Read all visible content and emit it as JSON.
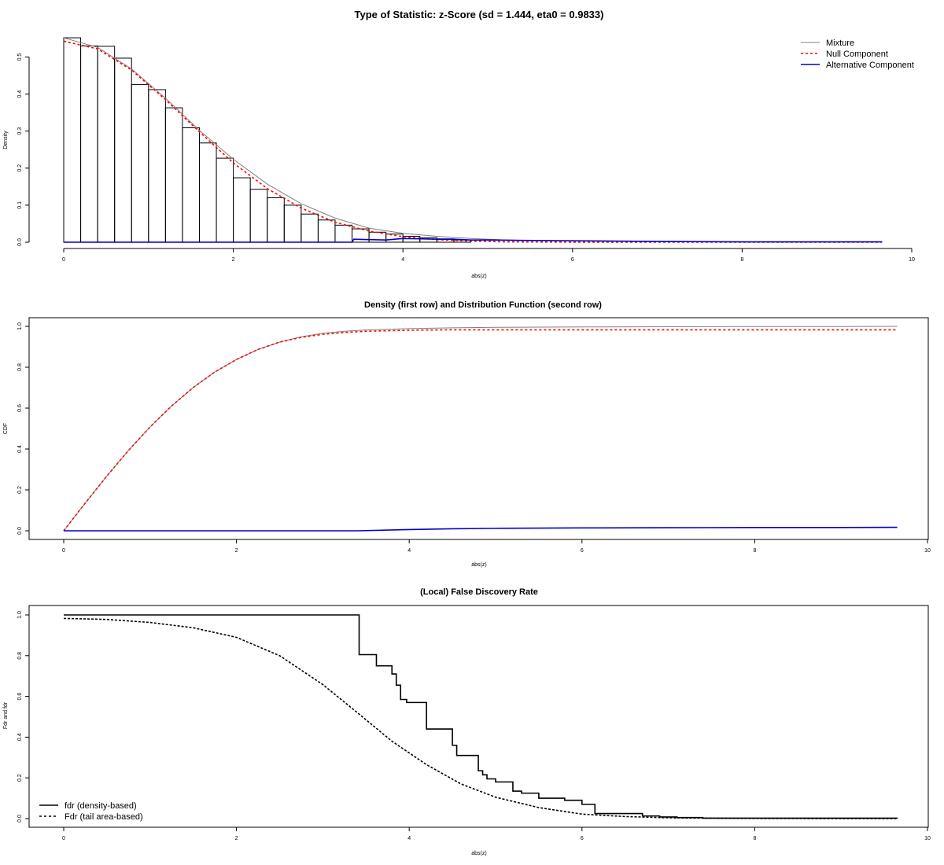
{
  "chart_data": [
    {
      "type": "bar",
      "title": "Type of Statistic: z-Score  (sd = 1.444, eta0 = 0.9833)",
      "xlabel": "abs(z)",
      "ylabel": "Density",
      "xlim": [
        0,
        10
      ],
      "ylim": [
        0,
        0.55
      ],
      "xticks": [
        "0",
        "2",
        "4",
        "6",
        "8",
        "10"
      ],
      "yticks": [
        "0.0",
        "0.1",
        "0.2",
        "0.3",
        "0.4",
        "0.5"
      ],
      "histogram": {
        "bin_width": 0.2,
        "start": 0,
        "values": [
          0.552,
          0.53,
          0.529,
          0.497,
          0.426,
          0.412,
          0.363,
          0.309,
          0.268,
          0.227,
          0.174,
          0.143,
          0.12,
          0.1,
          0.076,
          0.06,
          0.046,
          0.036,
          0.027,
          0.022,
          0.016,
          0.012,
          0.009,
          0.006
        ]
      },
      "series": [
        {
          "name": "Mixture",
          "color": "#808080",
          "style": "solid",
          "x": [
            0,
            0.4,
            0.8,
            1.2,
            1.6,
            2.0,
            2.4,
            2.8,
            3.2,
            3.6,
            4.0,
            4.4,
            4.8,
            5.2,
            5.6,
            6.0,
            7.0,
            8.0,
            9.0,
            9.65
          ],
          "y": [
            0.552,
            0.526,
            0.468,
            0.389,
            0.302,
            0.224,
            0.157,
            0.104,
            0.065,
            0.038,
            0.024,
            0.016,
            0.01,
            0.006,
            0.004,
            0.003,
            0.002,
            0.001,
            0.001,
            0.001
          ]
        },
        {
          "name": "Null Component",
          "color": "#ff0000",
          "style": "dashed",
          "x": [
            0,
            0.4,
            0.8,
            1.2,
            1.6,
            2.0,
            2.4,
            2.8,
            3.2,
            3.6,
            4.0,
            4.4,
            4.8,
            5.2,
            5.6,
            6.0,
            7.0,
            8.0,
            9.0,
            9.65
          ],
          "y": [
            0.543,
            0.522,
            0.465,
            0.385,
            0.298,
            0.214,
            0.145,
            0.092,
            0.054,
            0.03,
            0.015,
            0.007,
            0.003,
            0.001,
            0.0005,
            0.0002,
            0,
            0,
            0,
            0
          ]
        },
        {
          "name": "Alternative Component",
          "color": "#0000cd",
          "style": "solid",
          "x": [
            0,
            3.4,
            3.42,
            3.6,
            3.8,
            4.0,
            4.2,
            4.4,
            4.6,
            4.8,
            5.0,
            5.4,
            6.0,
            7.0,
            8.0,
            9.0,
            9.65
          ],
          "y": [
            0,
            0,
            0.008,
            0.007,
            0.006,
            0.01,
            0.009,
            0.008,
            0.008,
            0.006,
            0.006,
            0.005,
            0.004,
            0.002,
            0.001,
            0.001,
            0.001
          ]
        }
      ],
      "legend": {
        "position": "top-right",
        "entries": [
          "Mixture",
          "Null Component",
          "Alternative Component"
        ]
      }
    },
    {
      "type": "line",
      "title": "Density (first row) and Distribution Function (second row)",
      "xlabel": "abs(z)",
      "ylabel": "CDF",
      "xlim": [
        0,
        10
      ],
      "ylim": [
        0,
        1
      ],
      "xticks": [
        "0",
        "2",
        "4",
        "6",
        "8",
        "10"
      ],
      "yticks": [
        "0.0",
        "0.2",
        "0.4",
        "0.6",
        "0.8",
        "1.0"
      ],
      "series": [
        {
          "name": "Mixture",
          "color": "#808080",
          "style": "solid",
          "x": [
            0,
            0.25,
            0.5,
            0.75,
            1.0,
            1.25,
            1.5,
            1.75,
            2.0,
            2.25,
            2.5,
            2.75,
            3.0,
            3.25,
            3.5,
            4.0,
            4.5,
            5.0,
            6.0,
            7.0,
            8.0,
            9.0,
            9.65
          ],
          "y": [
            0,
            0.136,
            0.268,
            0.393,
            0.508,
            0.611,
            0.701,
            0.777,
            0.838,
            0.887,
            0.923,
            0.949,
            0.966,
            0.976,
            0.982,
            0.989,
            0.993,
            0.995,
            0.997,
            0.998,
            0.999,
            0.999,
            1.0
          ]
        },
        {
          "name": "Null Component",
          "color": "#ff0000",
          "style": "dashed",
          "x": [
            0,
            0.25,
            0.5,
            0.75,
            1.0,
            1.25,
            1.5,
            1.75,
            2.0,
            2.25,
            2.5,
            2.75,
            3.0,
            3.25,
            3.5,
            4.0,
            4.5,
            5.0,
            6.0,
            7.0,
            8.0,
            9.0,
            9.65
          ],
          "y": [
            0,
            0.136,
            0.268,
            0.393,
            0.508,
            0.611,
            0.701,
            0.777,
            0.838,
            0.887,
            0.923,
            0.946,
            0.961,
            0.97,
            0.976,
            0.981,
            0.983,
            0.983,
            0.983,
            0.983,
            0.983,
            0.983,
            0.983
          ]
        },
        {
          "name": "Alternative Component",
          "color": "#0000cd",
          "style": "solid",
          "x": [
            0,
            3.4,
            4.0,
            4.5,
            5.0,
            6.0,
            7.0,
            8.0,
            9.0,
            9.65
          ],
          "y": [
            0,
            0,
            0.006,
            0.01,
            0.012,
            0.014,
            0.015,
            0.016,
            0.016,
            0.017
          ]
        }
      ]
    },
    {
      "type": "line",
      "title": "(Local) False Discovery Rate",
      "xlabel": "abs(z)",
      "ylabel": "Fdr and fdr",
      "xlim": [
        0,
        10
      ],
      "ylim": [
        0,
        1
      ],
      "xticks": [
        "0",
        "2",
        "4",
        "6",
        "8",
        "10"
      ],
      "yticks": [
        "0.0",
        "0.2",
        "0.4",
        "0.6",
        "0.8",
        "1.0"
      ],
      "series": [
        {
          "name": "fdr (density-based)",
          "color": "#000000",
          "style": "solid",
          "step": true,
          "x": [
            0,
            3.4,
            3.42,
            3.62,
            3.8,
            3.85,
            3.9,
            3.97,
            4.2,
            4.5,
            4.55,
            4.8,
            4.85,
            4.9,
            5.0,
            5.2,
            5.3,
            5.5,
            5.8,
            6.0,
            6.15,
            6.7,
            6.9,
            7.1,
            7.4,
            9.65
          ],
          "y": [
            1.0,
            1.0,
            0.805,
            0.75,
            0.71,
            0.655,
            0.585,
            0.57,
            0.44,
            0.36,
            0.31,
            0.235,
            0.215,
            0.195,
            0.18,
            0.135,
            0.125,
            0.1,
            0.09,
            0.07,
            0.025,
            0.013,
            0.008,
            0.005,
            0.002,
            0.001
          ]
        },
        {
          "name": "Fdr (tail area-based)",
          "color": "#000000",
          "style": "dashed",
          "x": [
            0,
            0.5,
            1.0,
            1.5,
            2.0,
            2.5,
            3.0,
            3.4,
            3.8,
            4.2,
            4.6,
            5.0,
            5.5,
            6.0,
            6.5,
            7.0,
            7.5,
            8.0,
            9.0,
            9.65
          ],
          "y": [
            0.983,
            0.978,
            0.963,
            0.937,
            0.89,
            0.8,
            0.658,
            0.52,
            0.38,
            0.265,
            0.17,
            0.105,
            0.054,
            0.022,
            0.01,
            0.004,
            0.002,
            0.001,
            0.0,
            0.0
          ]
        }
      ],
      "legend": {
        "position": "bottom-left",
        "entries": [
          "fdr (density-based)",
          "Fdr (tail area-based)"
        ]
      }
    }
  ]
}
